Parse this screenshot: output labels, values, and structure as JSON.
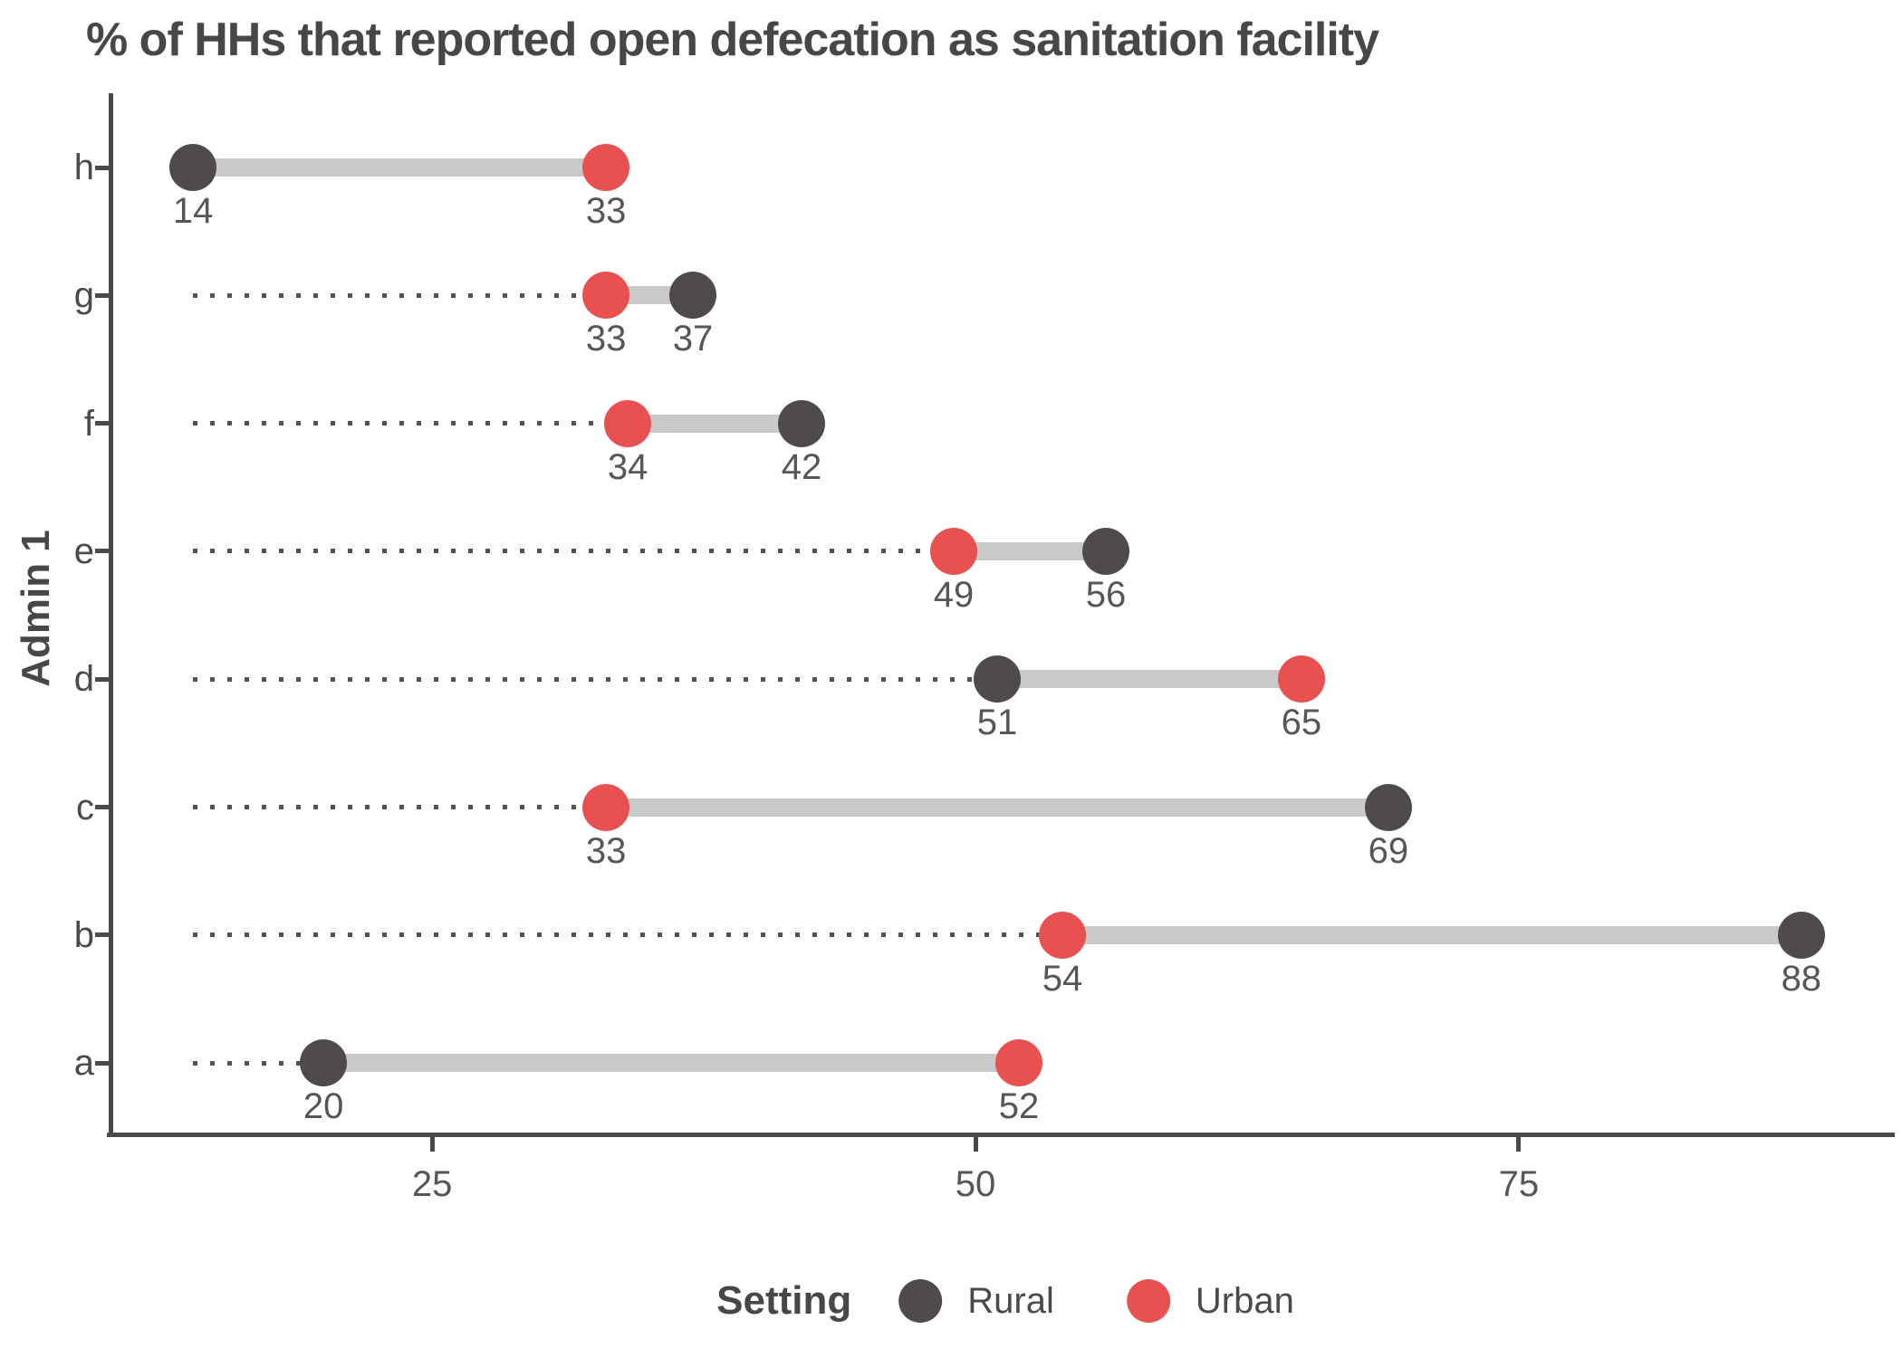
{
  "title": "% of HHs that reported open defecation as sanitation facility",
  "y_axis_title": "Admin 1",
  "legend": {
    "title": "Setting",
    "items": [
      {
        "label": "Rural",
        "color": "#4f4b4b"
      },
      {
        "label": "Urban",
        "color": "#e8514f"
      }
    ]
  },
  "chart_data": {
    "type": "dumbbell",
    "title": "% of HHs that reported open defecation as sanitation facility",
    "xlabel": "",
    "ylabel": "Admin 1",
    "categories": [
      "h",
      "g",
      "f",
      "e",
      "d",
      "c",
      "b",
      "a"
    ],
    "series": [
      {
        "name": "Rural",
        "color": "#4f4b4b",
        "values": [
          14,
          37,
          42,
          56,
          51,
          69,
          88,
          20
        ]
      },
      {
        "name": "Urban",
        "color": "#e8514f",
        "values": [
          33,
          33,
          34,
          49,
          65,
          33,
          54,
          52
        ]
      }
    ],
    "x_ticks": [
      25,
      50,
      75
    ],
    "xlim": [
      10.2,
      92.3
    ],
    "leader_start": 14,
    "grid": false,
    "legend_position": "bottom",
    "legend_title": "Setting",
    "connector_color": "#c9c9c9",
    "leader_color": "#525252",
    "axis_color": "#4a4a4a",
    "value_label_color": "#565656",
    "data_labels": true
  }
}
